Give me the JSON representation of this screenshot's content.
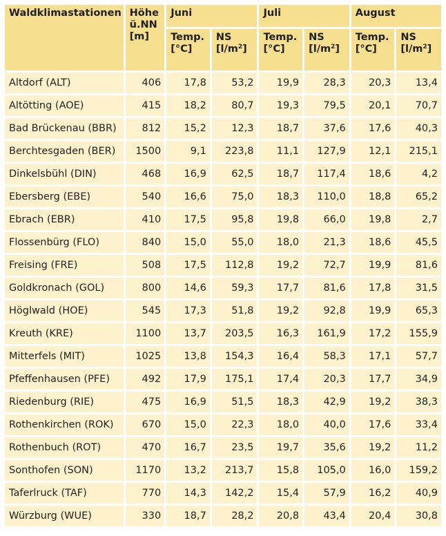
{
  "header": {
    "station": "Waldklimastationen",
    "altitude_line1": "Höhe",
    "altitude_line2": "ü.NN",
    "altitude_unit": "[m]",
    "months": [
      "Juni",
      "Juli",
      "August"
    ],
    "temp_label": "Temp.",
    "temp_unit": "[°C]",
    "ns_label": "NS",
    "ns_unit_base": "[l/m",
    "ns_unit_exp": "2",
    "ns_unit_close": "]"
  },
  "colors": {
    "header_bg": "#f6df8e",
    "cell_bg": "#fdf2cc"
  },
  "rows": [
    {
      "station": "Altdorf (ALT)",
      "altitude": "406",
      "jun_temp": "17,8",
      "jun_ns": "53,2",
      "jul_temp": "19,9",
      "jul_ns": "28,3",
      "aug_temp": "20,3",
      "aug_ns": "13,4"
    },
    {
      "station": "Altötting (AOE)",
      "altitude": "415",
      "jun_temp": "18,2",
      "jun_ns": "80,7",
      "jul_temp": "19,3",
      "jul_ns": "79,5",
      "aug_temp": "20,1",
      "aug_ns": "70,7"
    },
    {
      "station": "Bad Brückenau (BBR)",
      "altitude": "812",
      "jun_temp": "15,2",
      "jun_ns": "12,3",
      "jul_temp": "18,7",
      "jul_ns": "37,6",
      "aug_temp": "17,6",
      "aug_ns": "40,3"
    },
    {
      "station": "Berchtesgaden (BER)",
      "altitude": "1500",
      "jun_temp": "9,1",
      "jun_ns": "223,8",
      "jul_temp": "11,1",
      "jul_ns": "127,9",
      "aug_temp": "12,1",
      "aug_ns": "215,1"
    },
    {
      "station": "Dinkelsbühl (DIN)",
      "altitude": "468",
      "jun_temp": "16,9",
      "jun_ns": "62,5",
      "jul_temp": "18,7",
      "jul_ns": "117,4",
      "aug_temp": "18,6",
      "aug_ns": "4,2"
    },
    {
      "station": "Ebersberg (EBE)",
      "altitude": "540",
      "jun_temp": "16,6",
      "jun_ns": "75,0",
      "jul_temp": "18,3",
      "jul_ns": "110,0",
      "aug_temp": "18,8",
      "aug_ns": "65,2"
    },
    {
      "station": "Ebrach (EBR)",
      "altitude": "410",
      "jun_temp": "17,5",
      "jun_ns": "95,8",
      "jul_temp": "19,8",
      "jul_ns": "66,0",
      "aug_temp": "19,8",
      "aug_ns": "2,7"
    },
    {
      "station": "Flossenbürg (FLO)",
      "altitude": "840",
      "jun_temp": "15,0",
      "jun_ns": "55,0",
      "jul_temp": "18,0",
      "jul_ns": "21,3",
      "aug_temp": "18,6",
      "aug_ns": "45,5"
    },
    {
      "station": "Freising (FRE)",
      "altitude": "508",
      "jun_temp": "17,5",
      "jun_ns": "112,8",
      "jul_temp": "19,2",
      "jul_ns": "72,7",
      "aug_temp": "19,9",
      "aug_ns": "81,6"
    },
    {
      "station": "Goldkronach (GOL)",
      "altitude": "800",
      "jun_temp": "14,6",
      "jun_ns": "59,3",
      "jul_temp": "17,7",
      "jul_ns": "81,6",
      "aug_temp": "17,8",
      "aug_ns": "31,5"
    },
    {
      "station": "Höglwald (HOE)",
      "altitude": "545",
      "jun_temp": "17,3",
      "jun_ns": "51,8",
      "jul_temp": "19,2",
      "jul_ns": "92,8",
      "aug_temp": "19,9",
      "aug_ns": "65,3"
    },
    {
      "station": "Kreuth (KRE)",
      "altitude": "1100",
      "jun_temp": "13,7",
      "jun_ns": "203,5",
      "jul_temp": "16,3",
      "jul_ns": "161,9",
      "aug_temp": "17,2",
      "aug_ns": "155,9"
    },
    {
      "station": "Mitterfels (MIT)",
      "altitude": "1025",
      "jun_temp": "13,8",
      "jun_ns": "154,3",
      "jul_temp": "16,4",
      "jul_ns": "58,3",
      "aug_temp": "17,1",
      "aug_ns": "57,7"
    },
    {
      "station": "Pfeffenhausen (PFE)",
      "altitude": "492",
      "jun_temp": "17,9",
      "jun_ns": "175,1",
      "jul_temp": "17,4",
      "jul_ns": "20,3",
      "aug_temp": "17,7",
      "aug_ns": "34,9"
    },
    {
      "station": "Riedenburg (RIE)",
      "altitude": "475",
      "jun_temp": "16,9",
      "jun_ns": "51,5",
      "jul_temp": "18,3",
      "jul_ns": "42,9",
      "aug_temp": "19,2",
      "aug_ns": "38,3"
    },
    {
      "station": "Rothenkirchen (ROK)",
      "altitude": "670",
      "jun_temp": "15,0",
      "jun_ns": "22,3",
      "jul_temp": "18,0",
      "jul_ns": "40,0",
      "aug_temp": "17,6",
      "aug_ns": "33,4"
    },
    {
      "station": "Rothenbuch (ROT)",
      "altitude": "470",
      "jun_temp": "16,7",
      "jun_ns": "23,5",
      "jul_temp": "19,7",
      "jul_ns": "35,6",
      "aug_temp": "19,2",
      "aug_ns": "11,2"
    },
    {
      "station": "Sonthofen (SON)",
      "altitude": "1170",
      "jun_temp": "13,2",
      "jun_ns": "213,7",
      "jul_temp": "15,8",
      "jul_ns": "105,0",
      "aug_temp": "16,0",
      "aug_ns": "159,2"
    },
    {
      "station": "Taferlruck (TAF)",
      "altitude": "770",
      "jun_temp": "14,3",
      "jun_ns": "142,2",
      "jul_temp": "15,4",
      "jul_ns": "57,9",
      "aug_temp": "16,2",
      "aug_ns": "40,9"
    },
    {
      "station": "Würzburg (WUE)",
      "altitude": "330",
      "jun_temp": "18,7",
      "jun_ns": "28,2",
      "jul_temp": "20,8",
      "jul_ns": "43,4",
      "aug_temp": "20,4",
      "aug_ns": "30,8"
    }
  ]
}
